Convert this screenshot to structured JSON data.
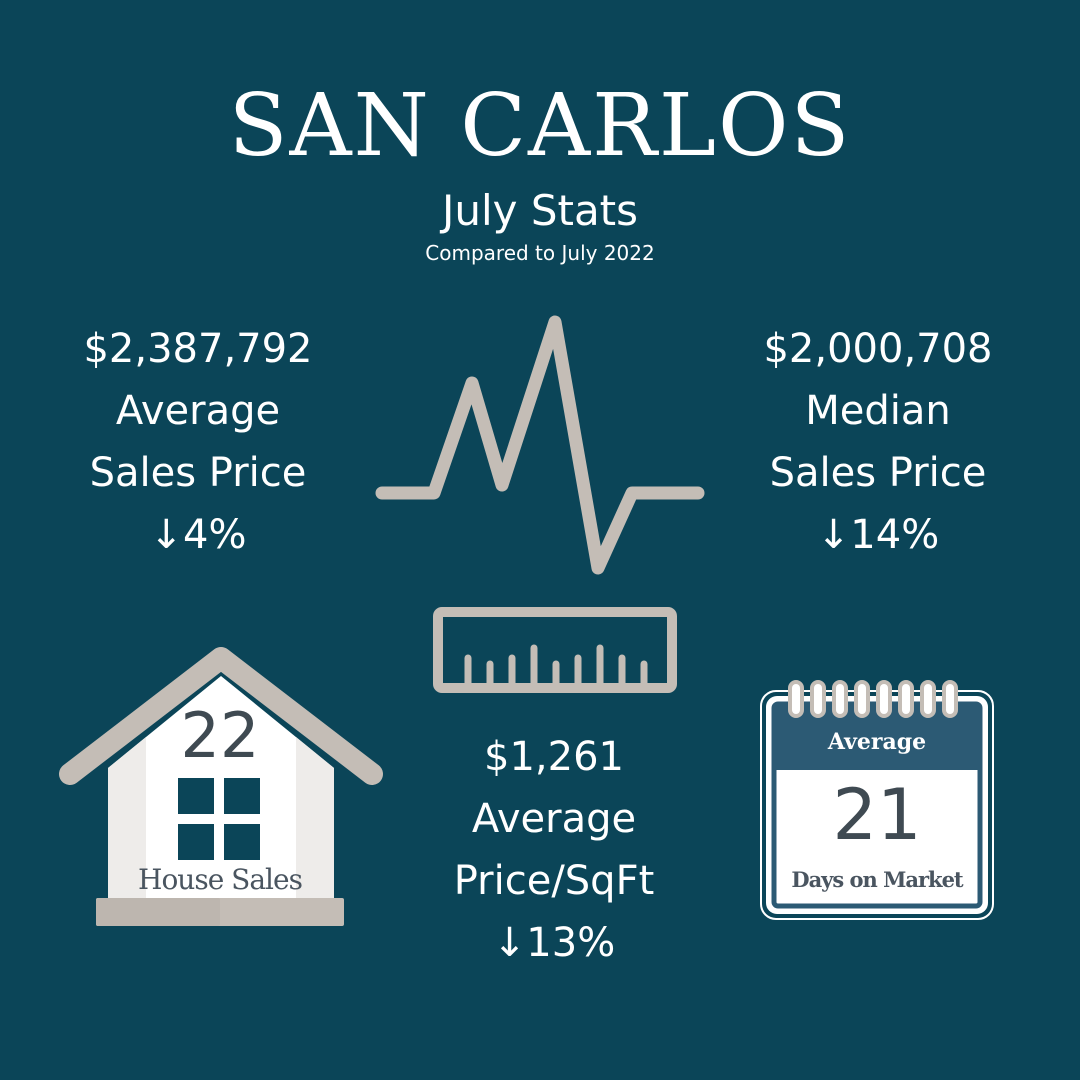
{
  "header": {
    "title": "SAN CARLOS",
    "subtitle": "July Stats",
    "comparison": "Compared to July 2022"
  },
  "stats": {
    "average_sales_price": {
      "value": "$2,387,792",
      "label_line1": "Average",
      "label_line2": "Sales Price",
      "change": "↓4%"
    },
    "median_sales_price": {
      "value": "$2,000,708",
      "label_line1": "Median",
      "label_line2": "Sales Price",
      "change": "↓14%"
    },
    "average_price_sqft": {
      "value": "$1,261",
      "label_line1": "Average",
      "label_line2": "Price/SqFt",
      "change": "↓13%"
    },
    "house_sales": {
      "value": "22",
      "label": "House Sales"
    },
    "days_on_market": {
      "header": "Average",
      "value": "21",
      "label": "Days on Market"
    }
  },
  "icons": {
    "pulse": "heartbeat-line-icon",
    "ruler": "ruler-icon",
    "house": "house-icon",
    "calendar": "calendar-icon"
  },
  "colors": {
    "background": "#0b4558",
    "text": "#ffffff",
    "icon_gray": "#c4bdb6",
    "calendar_header": "#2c5a74",
    "dark_text": "#3f4a52"
  }
}
